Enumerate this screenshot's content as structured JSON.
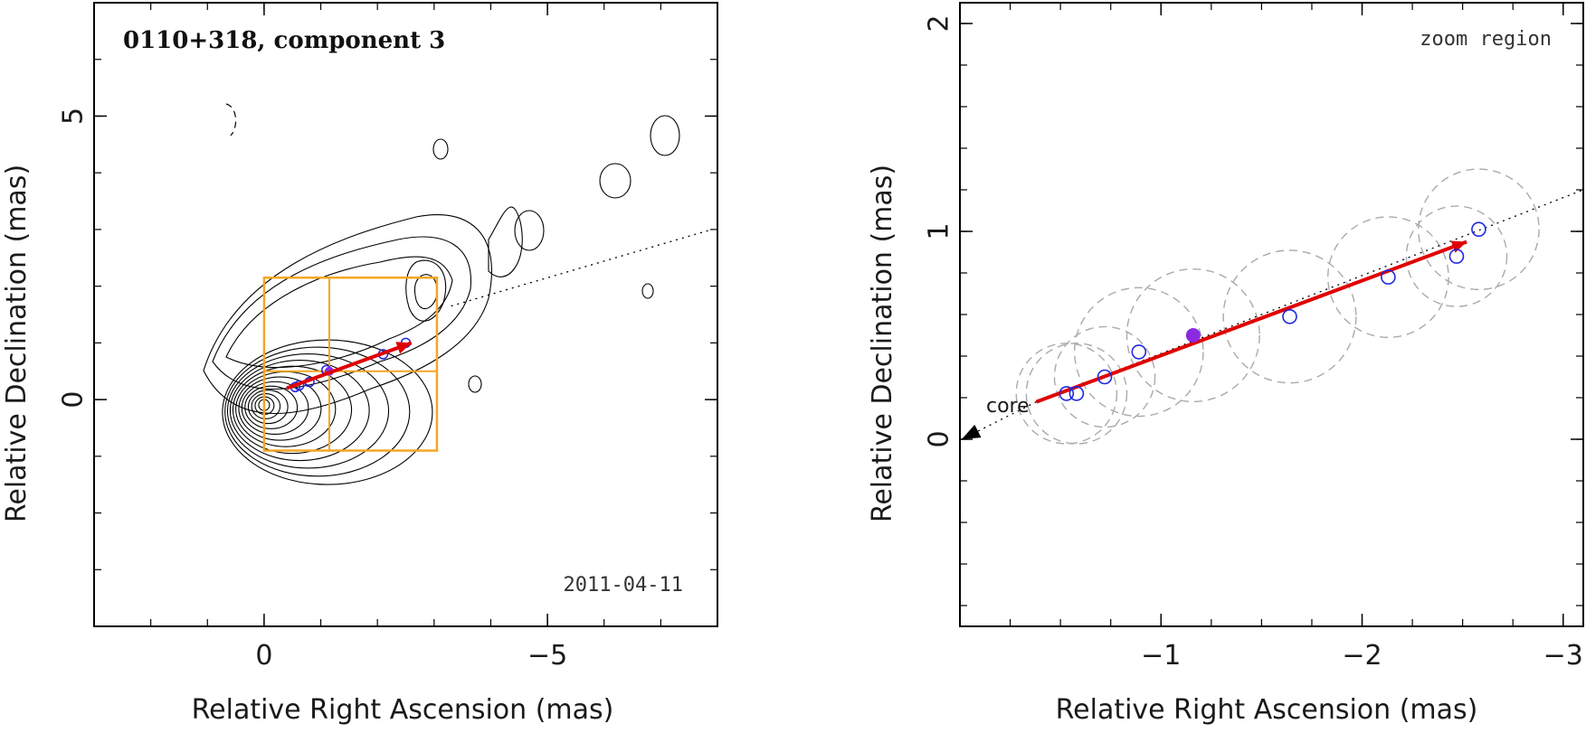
{
  "colors": {
    "frame": "#000000",
    "contour": "#000000",
    "box": "#f5a623",
    "arrow": "#e00000",
    "open_marker": "#1f28e0",
    "filled_marker": "#8a2be2",
    "dashed_circle": "#aaaaaa"
  },
  "chart_data": [
    {
      "type": "scatter",
      "panel": "left",
      "title": "0110+318, component 3",
      "annotation": "2011-04-11",
      "xlabel": "Relative Right Ascension (mas)",
      "ylabel": "Relative Declination (mas)",
      "xlim": [
        3,
        -8
      ],
      "ylim": [
        -4,
        7
      ],
      "x_ticks": [
        0,
        -5
      ],
      "x_tick_labels": [
        "0",
        "−5"
      ],
      "y_ticks": [
        0,
        5
      ],
      "y_tick_labels": [
        "0",
        "5"
      ],
      "contour_peak": [
        0,
        0
      ],
      "zoom_box": {
        "x": [
          0,
          -3.05
        ],
        "y": [
          -0.9,
          2.15
        ]
      },
      "zoom_grid_x": -1.15,
      "zoom_grid_y": 0.5,
      "trend_line": {
        "from": [
          -3.3,
          1.65
        ],
        "to": [
          -7.9,
          3.0
        ]
      },
      "arrow": {
        "from": [
          -0.4,
          0.2
        ],
        "to": [
          -2.6,
          1.0
        ]
      },
      "open_points": [
        [
          -0.55,
          0.22
        ],
        [
          -0.62,
          0.25
        ],
        [
          -0.8,
          0.31
        ],
        [
          -1.1,
          0.52
        ],
        [
          -2.1,
          0.8
        ],
        [
          -2.5,
          1.0
        ]
      ],
      "filled_points": [
        [
          -1.15,
          0.5
        ]
      ]
    },
    {
      "type": "scatter",
      "panel": "right",
      "annotation": "zoom region",
      "core_label": "core",
      "xlabel": "Relative Right Ascension (mas)",
      "ylabel": "Relative Declination (mas)",
      "xlim": [
        0,
        -3.1
      ],
      "ylim": [
        -0.9,
        2.1
      ],
      "x_ticks": [
        -1,
        -2,
        -3
      ],
      "x_tick_labels": [
        "−1",
        "−2",
        "−3"
      ],
      "y_ticks": [
        0,
        1,
        2
      ],
      "y_tick_labels": [
        "0",
        "1",
        "2"
      ],
      "trend_line": {
        "from": [
          -0.38,
          0.18
        ],
        "to": [
          -3.1,
          1.2
        ]
      },
      "arrow": {
        "from": [
          -0.38,
          0.18
        ],
        "to": [
          -2.52,
          0.95
        ]
      },
      "core_arrow": {
        "from": [
          -0.38,
          0.18
        ],
        "to": [
          0,
          0.0
        ]
      },
      "open_points": [
        {
          "x": -0.53,
          "y": 0.22,
          "r": 0.25
        },
        {
          "x": -0.58,
          "y": 0.22,
          "r": 0.25
        },
        {
          "x": -0.72,
          "y": 0.3,
          "r": 0.25
        },
        {
          "x": -0.89,
          "y": 0.42,
          "r": 0.32
        },
        {
          "x": -1.64,
          "y": 0.59,
          "r": 0.33
        },
        {
          "x": -2.13,
          "y": 0.78,
          "r": 0.3
        },
        {
          "x": -2.47,
          "y": 0.88,
          "r": 0.25
        },
        {
          "x": -2.58,
          "y": 1.01,
          "r": 0.3
        }
      ],
      "filled_points": [
        {
          "x": -1.16,
          "y": 0.5,
          "r": 0.33
        }
      ]
    }
  ]
}
